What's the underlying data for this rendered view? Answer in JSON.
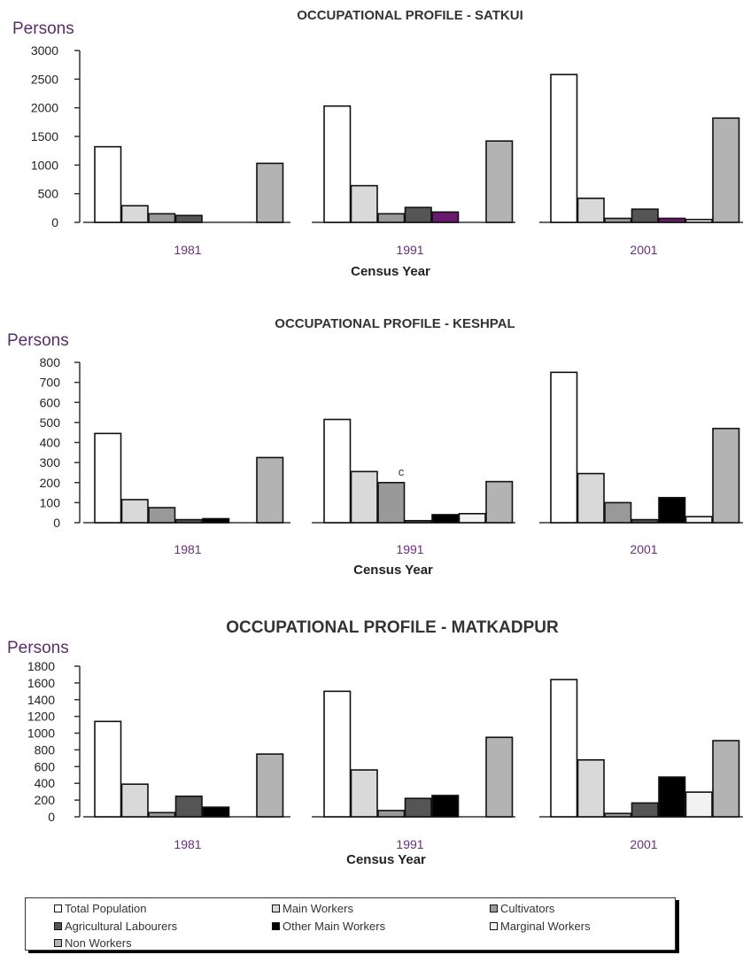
{
  "chart_data": [
    {
      "type": "bar",
      "title": "OCCUPATIONAL PROFILE - SATKUI",
      "ylabel": "Persons",
      "xlabel": "Census Year",
      "ylim": [
        0,
        3000
      ],
      "yticks": [
        0,
        500,
        1000,
        1500,
        2000,
        2500,
        3000
      ],
      "categories": [
        "1981",
        "1991",
        "2001"
      ],
      "series": [
        {
          "name": "Total Population",
          "values": [
            1320,
            2030,
            2580
          ]
        },
        {
          "name": "Main Workers",
          "values": [
            290,
            640,
            420
          ]
        },
        {
          "name": "Cultivators",
          "values": [
            150,
            150,
            70
          ]
        },
        {
          "name": "Agricultural Labourers",
          "values": [
            120,
            260,
            230
          ]
        },
        {
          "name": "Other Main Workers",
          "values": [
            0,
            180,
            70
          ]
        },
        {
          "name": "Marginal Workers",
          "values": [
            0,
            0,
            50
          ]
        },
        {
          "name": "Non Workers",
          "values": [
            1030,
            1420,
            1820
          ]
        }
      ],
      "grid": false,
      "legend": "bottom"
    },
    {
      "type": "bar",
      "title": "OCCUPATIONAL PROFILE - KESHPAL",
      "ylabel": "Persons",
      "xlabel": "Census Year",
      "ylim": [
        0,
        800
      ],
      "yticks": [
        0,
        100,
        200,
        300,
        400,
        500,
        600,
        700,
        800
      ],
      "categories": [
        "1981",
        "1991",
        "2001"
      ],
      "series": [
        {
          "name": "Total Population",
          "values": [
            445,
            515,
            750
          ]
        },
        {
          "name": "Main Workers",
          "values": [
            115,
            255,
            245
          ]
        },
        {
          "name": "Cultivators",
          "values": [
            75,
            200,
            100
          ]
        },
        {
          "name": "Agricultural Labourers",
          "values": [
            15,
            10,
            15
          ]
        },
        {
          "name": "Other Main Workers",
          "values": [
            20,
            40,
            125
          ]
        },
        {
          "name": "Marginal Workers",
          "values": [
            0,
            45,
            30
          ]
        },
        {
          "name": "Non Workers",
          "values": [
            325,
            205,
            470
          ]
        }
      ],
      "annotation": "c",
      "grid": false,
      "legend": "bottom"
    },
    {
      "type": "bar",
      "title": "OCCUPATIONAL PROFILE - MATKADPUR",
      "ylabel": "Persons",
      "xlabel": "Census Year",
      "ylim": [
        0,
        1800
      ],
      "yticks": [
        0,
        200,
        400,
        600,
        800,
        1000,
        1200,
        1400,
        1600,
        1800
      ],
      "categories": [
        "1981",
        "1991",
        "2001"
      ],
      "series": [
        {
          "name": "Total Population",
          "values": [
            1140,
            1500,
            1640
          ]
        },
        {
          "name": "Main Workers",
          "values": [
            390,
            560,
            680
          ]
        },
        {
          "name": "Cultivators",
          "values": [
            50,
            75,
            40
          ]
        },
        {
          "name": "Agricultural Labourers",
          "values": [
            245,
            220,
            165
          ]
        },
        {
          "name": "Other Main Workers",
          "values": [
            115,
            255,
            475
          ]
        },
        {
          "name": "Marginal Workers",
          "values": [
            0,
            0,
            295
          ]
        },
        {
          "name": "Non Workers",
          "values": [
            750,
            950,
            910
          ]
        }
      ],
      "grid": false,
      "legend": "bottom"
    }
  ],
  "legend": {
    "items": [
      {
        "label": "Total Population",
        "color": "#ffffff"
      },
      {
        "label": "Main Workers",
        "color": "#d9d9d9"
      },
      {
        "label": "Cultivators",
        "color": "#999999"
      },
      {
        "label": "Agricultural Labourers",
        "color": "#555555"
      },
      {
        "label": "Other Main Workers",
        "color": "#000000"
      },
      {
        "label": "Marginal Workers",
        "color": "#f2f2f2"
      },
      {
        "label": "Non Workers",
        "color": "#b3b3b3"
      }
    ]
  }
}
